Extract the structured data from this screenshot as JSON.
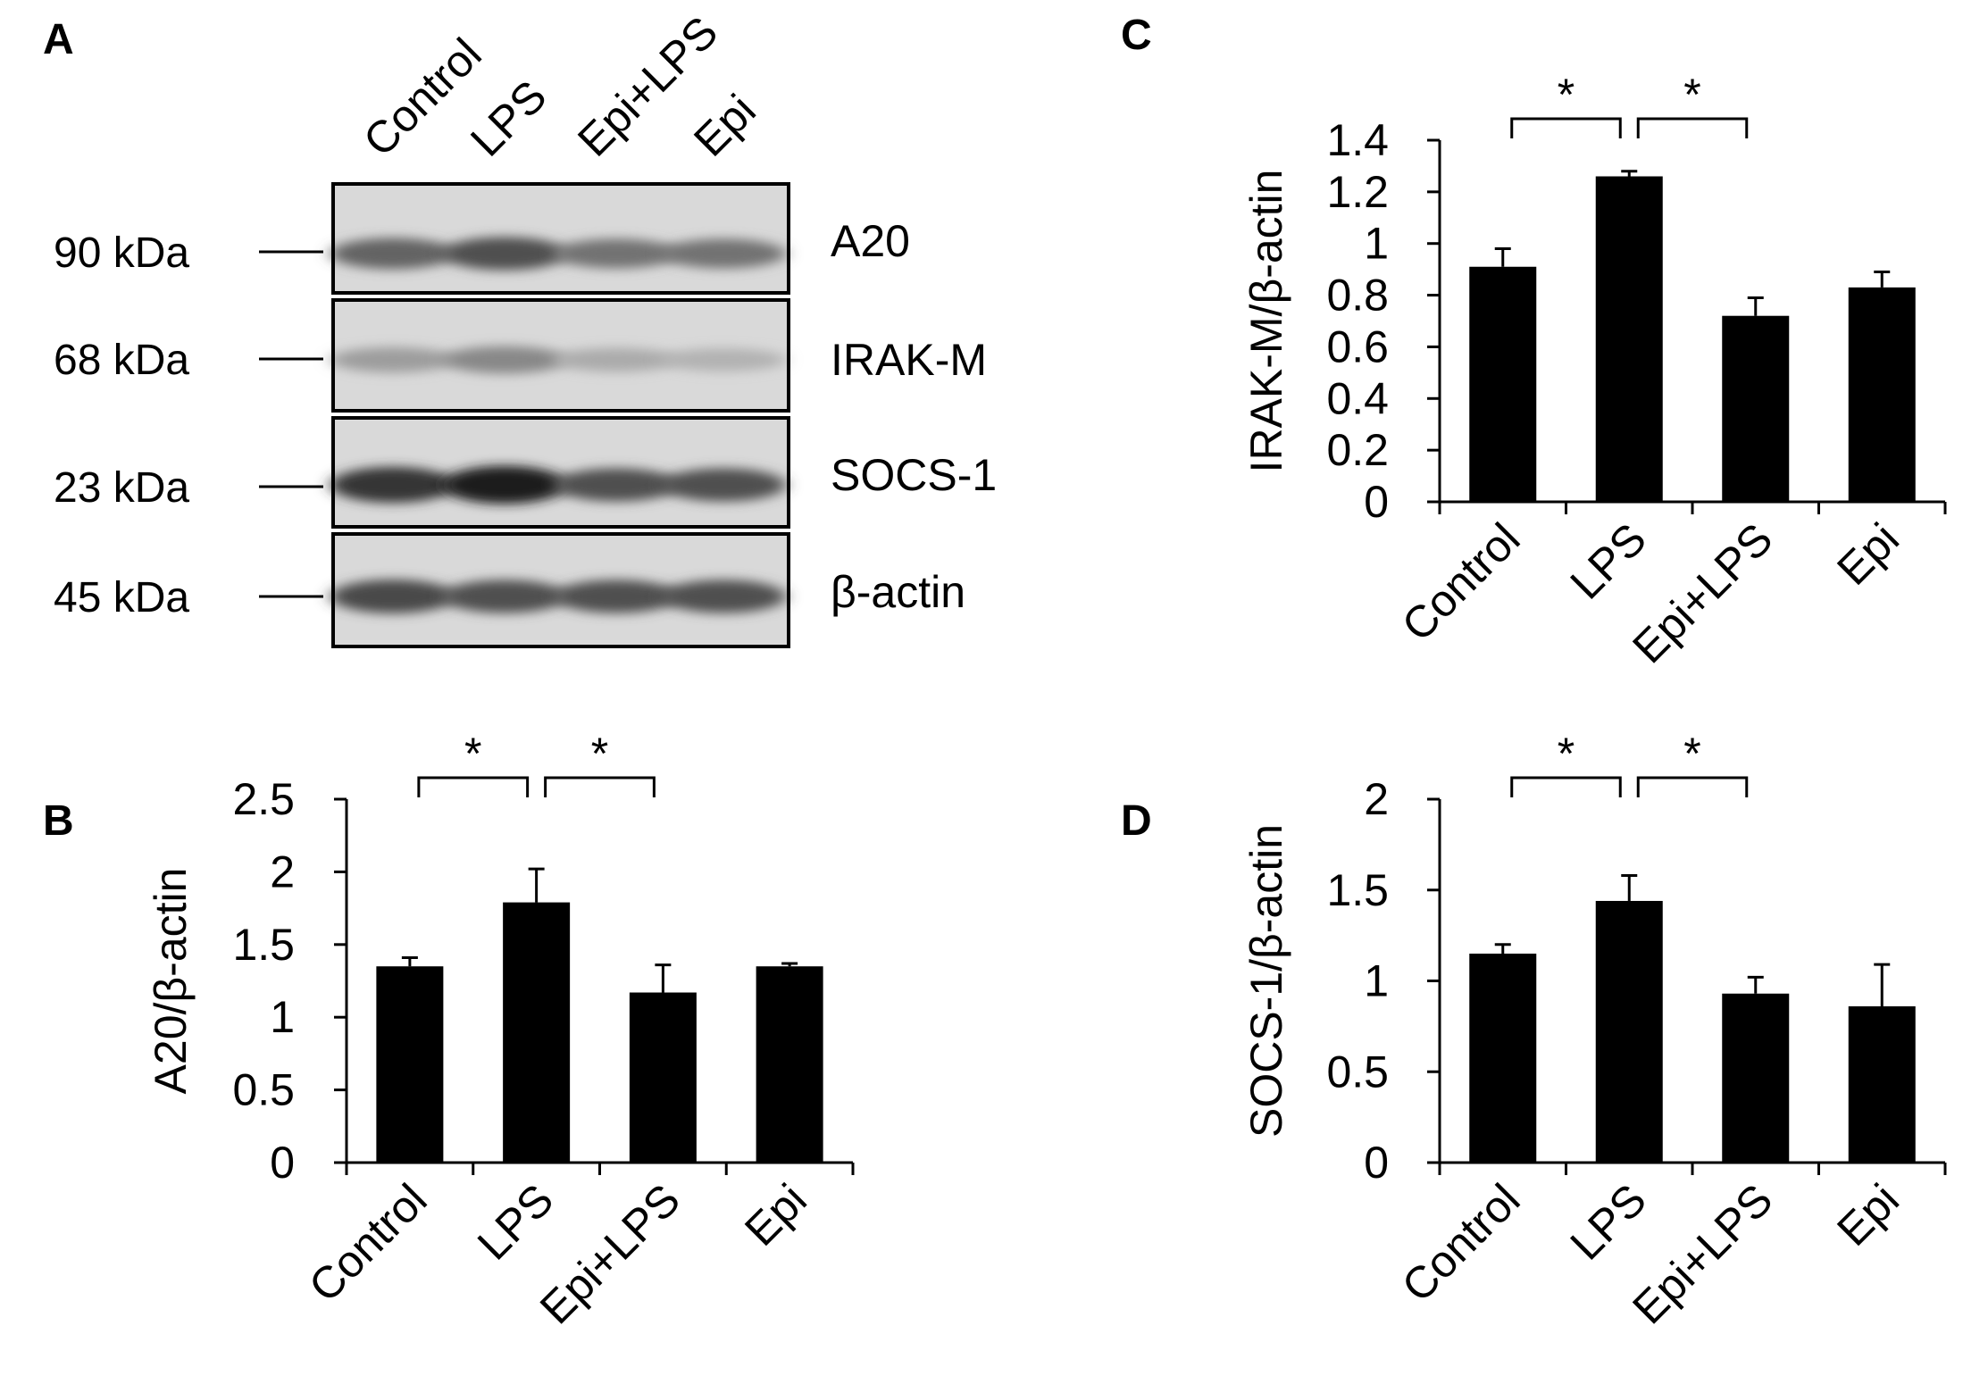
{
  "panels": {
    "A": {
      "letter": "A",
      "lanes": [
        "Control",
        "LPS",
        "Epi+LPS",
        "Epi"
      ],
      "blots": [
        {
          "kda": "90 kDa",
          "protein": "A20",
          "intensity": [
            0.62,
            0.72,
            0.55,
            0.55
          ]
        },
        {
          "kda": "68 kDa",
          "protein": "IRAK-M",
          "intensity": [
            0.35,
            0.45,
            0.28,
            0.25
          ]
        },
        {
          "kda": "23 kDa",
          "protein": "SOCS-1",
          "intensity": [
            0.85,
            0.95,
            0.72,
            0.72
          ]
        },
        {
          "kda": "45 kDa",
          "protein": "β-actin",
          "intensity": [
            0.75,
            0.72,
            0.72,
            0.72
          ]
        }
      ]
    },
    "B": {
      "letter": "B"
    },
    "C": {
      "letter": "C"
    },
    "D": {
      "letter": "D"
    }
  },
  "chart_data": [
    {
      "panel": "B",
      "type": "bar",
      "categories": [
        "Control",
        "LPS",
        "Epi+LPS",
        "Epi"
      ],
      "values": [
        1.35,
        1.79,
        1.17,
        1.35
      ],
      "errors": [
        0.06,
        0.23,
        0.19,
        0.02
      ],
      "ylabel": "A20/β-actin",
      "ylim": [
        0,
        2.5
      ],
      "yticks": [
        "0",
        "0.5",
        "1",
        "1.5",
        "2",
        "2.5"
      ],
      "significance": [
        {
          "from": 0,
          "to": 1,
          "label": "*"
        },
        {
          "from": 1,
          "to": 2,
          "label": "*"
        }
      ]
    },
    {
      "panel": "C",
      "type": "bar",
      "categories": [
        "Control",
        "LPS",
        "Epi+LPS",
        "Epi"
      ],
      "values": [
        0.91,
        1.26,
        0.72,
        0.83
      ],
      "errors": [
        0.07,
        0.02,
        0.07,
        0.06
      ],
      "ylabel": "IRAK-M/β-actin",
      "ylim": [
        0,
        1.4
      ],
      "yticks": [
        "0",
        "0.2",
        "0.4",
        "0.6",
        "0.8",
        "1",
        "1.2",
        "1.4"
      ],
      "significance": [
        {
          "from": 0,
          "to": 1,
          "label": "*"
        },
        {
          "from": 1,
          "to": 2,
          "label": "*"
        }
      ]
    },
    {
      "panel": "D",
      "type": "bar",
      "categories": [
        "Control",
        "LPS",
        "Epi+LPS",
        "Epi"
      ],
      "values": [
        1.15,
        1.44,
        0.93,
        0.86
      ],
      "errors": [
        0.05,
        0.14,
        0.09,
        0.23
      ],
      "ylabel": "SOCS-1/β-actin",
      "ylim": [
        0,
        2
      ],
      "yticks": [
        "0",
        "0.5",
        "1",
        "1.5",
        "2"
      ],
      "significance": [
        {
          "from": 0,
          "to": 1,
          "label": "*"
        },
        {
          "from": 1,
          "to": 2,
          "label": "*"
        }
      ]
    }
  ]
}
